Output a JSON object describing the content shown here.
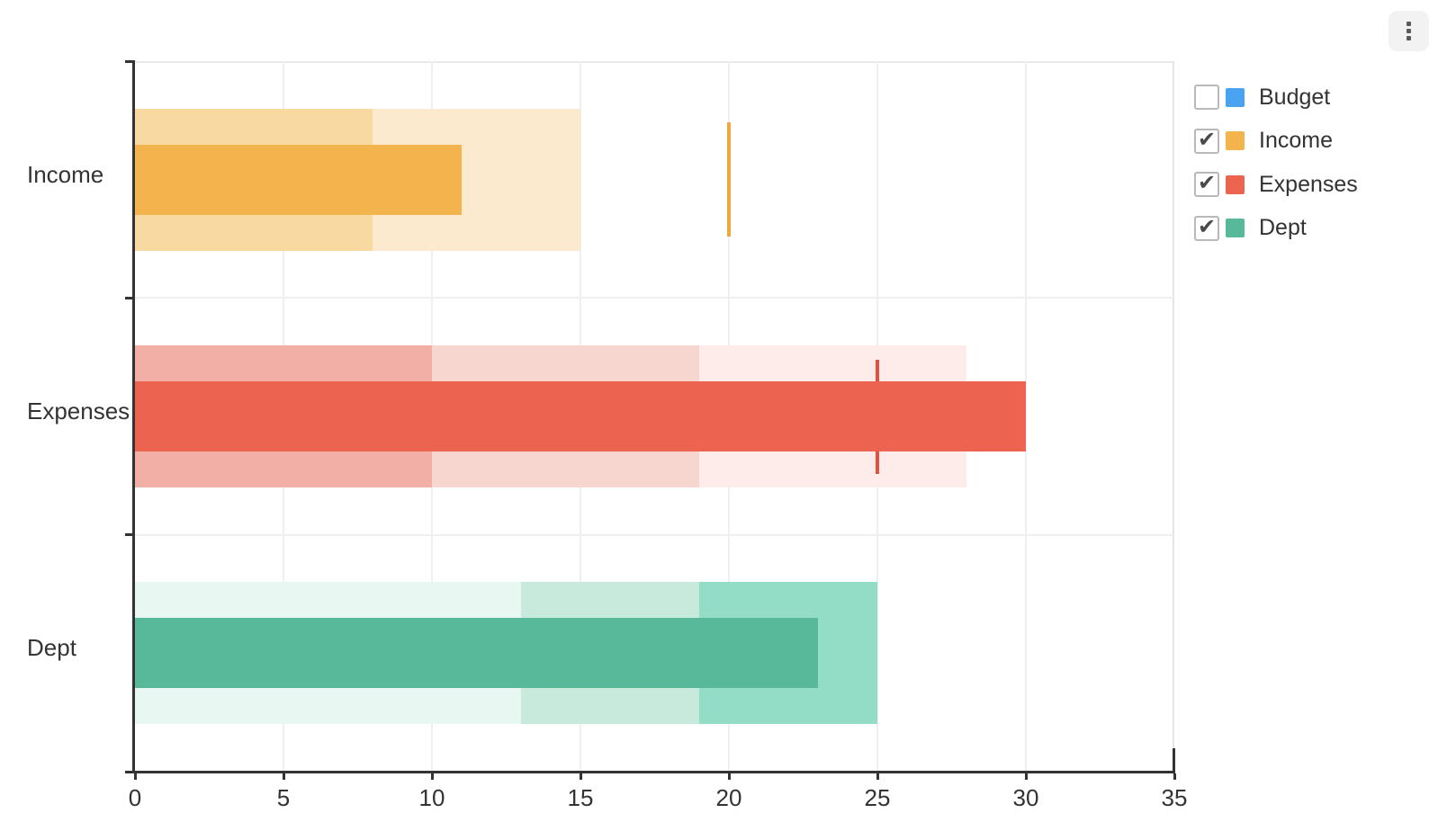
{
  "chart_data": {
    "type": "bar",
    "subtype": "bullet",
    "orientation": "horizontal",
    "title": "",
    "xlabel": "",
    "ylabel": "",
    "grid": true,
    "legend_position": "right",
    "categories": [
      "Income",
      "Expenses",
      "Dept"
    ],
    "x_axis": {
      "min": 0,
      "max": 35,
      "ticks": [
        0,
        5,
        10,
        15,
        20,
        25,
        30,
        35
      ]
    },
    "series": [
      {
        "name": "Income",
        "measure": 11,
        "target": 20,
        "ranges": [
          {
            "from": 0,
            "to": 8,
            "color": "#f8d9a2"
          },
          {
            "from": 8,
            "to": 15,
            "color": "#fbeacd"
          }
        ],
        "measure_color": "#f3b44d",
        "target_color": "#f0a73e"
      },
      {
        "name": "Expenses",
        "measure": 30,
        "target": 25,
        "ranges": [
          {
            "from": 0,
            "to": 10,
            "color": "#f2afa6"
          },
          {
            "from": 10,
            "to": 19,
            "color": "#f8d6d0"
          },
          {
            "from": 19,
            "to": 28,
            "color": "#fdecea"
          }
        ],
        "measure_color": "#ec6450",
        "target_color": "#e0523c"
      },
      {
        "name": "Dept",
        "measure": 23,
        "target": null,
        "ranges": [
          {
            "from": 0,
            "to": 13,
            "color": "#e9f7f2"
          },
          {
            "from": 13,
            "to": 19,
            "color": "#c7eadd"
          },
          {
            "from": 19,
            "to": 25,
            "color": "#93dcc6"
          }
        ],
        "measure_color": "#57b99a",
        "target_color": null
      }
    ]
  },
  "legend": {
    "checkmark_glyph": "✔",
    "items": [
      {
        "label": "Budget",
        "checked": false,
        "color": "#4aa3f1"
      },
      {
        "label": "Income",
        "checked": true,
        "color": "#f3b44d"
      },
      {
        "label": "Expenses",
        "checked": true,
        "color": "#ec6450"
      },
      {
        "label": "Dept",
        "checked": true,
        "color": "#57b99a"
      }
    ]
  },
  "menu_button": {
    "icon": "kebab-vertical"
  },
  "colors": {
    "axis": "#333333",
    "text": "#333333",
    "grid": "#efefef",
    "plot_border_top": "#e9e9e9",
    "plot_border_right": "#e4e4e4",
    "background": "#ffffff",
    "menu_bg": "#f2f2f2",
    "checkbox_border": "#b9b9b9",
    "checkmark": "#4a4a4a"
  }
}
